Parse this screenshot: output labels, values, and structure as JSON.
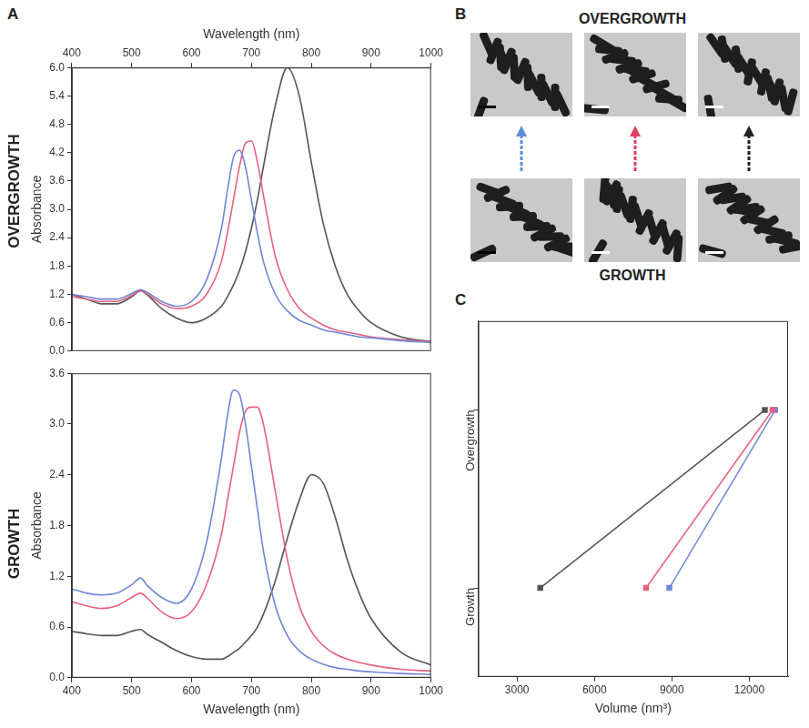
{
  "chart_data": [
    {
      "panel": "A",
      "type": "line",
      "title": "OVERGROWTH",
      "x_label": "Wavelength (nm)",
      "y_label": "Absorbance",
      "x": [
        400,
        425,
        450,
        475,
        500,
        515,
        525,
        550,
        575,
        600,
        625,
        650,
        660,
        670,
        680,
        690,
        700,
        710,
        720,
        740,
        760,
        780,
        800,
        820,
        840,
        860,
        880,
        900,
        950,
        1000
      ],
      "series": [
        {
          "color": "#6f86d9",
          "values": [
            1.2,
            1.15,
            1.1,
            1.1,
            1.22,
            1.3,
            1.25,
            1.05,
            0.95,
            1.05,
            1.5,
            2.6,
            3.4,
            4.1,
            4.25,
            3.9,
            3.2,
            2.5,
            1.9,
            1.2,
            0.85,
            0.65,
            0.55,
            0.45,
            0.4,
            0.35,
            0.3,
            0.28,
            0.22,
            0.18
          ]
        },
        {
          "color": "#e8607f",
          "values": [
            1.15,
            1.1,
            1.05,
            1.05,
            1.18,
            1.28,
            1.22,
            1.0,
            0.9,
            0.95,
            1.2,
            1.9,
            2.5,
            3.2,
            3.9,
            4.4,
            4.45,
            4.0,
            3.3,
            2.0,
            1.3,
            0.9,
            0.7,
            0.55,
            0.45,
            0.4,
            0.35,
            0.3,
            0.24,
            0.2
          ]
        },
        {
          "color": "#555555",
          "values": [
            1.2,
            1.1,
            1.0,
            1.0,
            1.15,
            1.28,
            1.2,
            0.9,
            0.7,
            0.6,
            0.7,
            0.95,
            1.15,
            1.4,
            1.7,
            2.1,
            2.6,
            3.2,
            3.9,
            5.2,
            6.0,
            5.4,
            4.0,
            2.7,
            1.8,
            1.2,
            0.85,
            0.6,
            0.3,
            0.2
          ]
        }
      ],
      "xlim": [
        400,
        1000
      ],
      "xticks": [
        400,
        500,
        600,
        700,
        800,
        900,
        1000
      ],
      "ylim": [
        0,
        6
      ],
      "yticks": [
        {
          "value": 0,
          "label": "0.0"
        },
        0.6,
        1.2,
        1.8,
        2.4,
        {
          "value": 3,
          "label": "3.0"
        },
        3.6,
        4.2,
        4.8,
        5.4,
        {
          "value": 6,
          "label": "6.0"
        }
      ],
      "grid": false
    },
    {
      "type": "line",
      "title": "GROWTH",
      "x_label": "Wavelength (nm)",
      "y_label": "Absorbance",
      "x": [
        400,
        425,
        450,
        475,
        500,
        515,
        525,
        550,
        575,
        600,
        625,
        650,
        660,
        670,
        680,
        690,
        700,
        710,
        720,
        740,
        760,
        780,
        800,
        820,
        840,
        860,
        880,
        900,
        950,
        1000
      ],
      "series": [
        {
          "color": "#6f86d9",
          "values": [
            1.05,
            1.0,
            0.98,
            1.0,
            1.1,
            1.18,
            1.1,
            0.95,
            0.88,
            1.05,
            1.6,
            2.6,
            3.1,
            3.4,
            3.35,
            3.0,
            2.5,
            2.0,
            1.5,
            0.85,
            0.5,
            0.32,
            0.22,
            0.16,
            0.12,
            0.1,
            0.08,
            0.07,
            0.05,
            0.04
          ]
        },
        {
          "color": "#e8607f",
          "values": [
            0.9,
            0.85,
            0.82,
            0.85,
            0.95,
            1.0,
            0.95,
            0.78,
            0.7,
            0.78,
            1.1,
            1.7,
            2.1,
            2.5,
            2.9,
            3.15,
            3.2,
            3.2,
            3.0,
            2.2,
            1.4,
            0.85,
            0.55,
            0.38,
            0.28,
            0.22,
            0.18,
            0.15,
            0.1,
            0.08
          ]
        },
        {
          "color": "#555555",
          "values": [
            0.55,
            0.52,
            0.5,
            0.5,
            0.55,
            0.57,
            0.52,
            0.42,
            0.32,
            0.25,
            0.22,
            0.22,
            0.25,
            0.3,
            0.35,
            0.42,
            0.5,
            0.6,
            0.75,
            1.15,
            1.65,
            2.1,
            2.4,
            2.3,
            1.9,
            1.4,
            1.0,
            0.7,
            0.3,
            0.15
          ]
        }
      ],
      "xlim": [
        400,
        1000
      ],
      "xticks": [
        400,
        500,
        600,
        700,
        800,
        900,
        1000
      ],
      "ylim": [
        0,
        3.6
      ],
      "yticks": [
        {
          "value": 0,
          "label": "0.0"
        },
        0.6,
        1.2,
        1.8,
        2.4,
        {
          "value": 3,
          "label": "3.0"
        },
        3.6
      ],
      "grid": false
    },
    {
      "panel": "C",
      "type": "line",
      "orientation": "horizontal",
      "marker": "square",
      "categories": [
        "Growth",
        "Overgrowth"
      ],
      "x_label": "Volume (nm³)",
      "series": [
        {
          "color": "#555555",
          "values": [
            3900,
            12600
          ]
        },
        {
          "color": "#e8607f",
          "values": [
            8000,
            12900
          ]
        },
        {
          "color": "#6f86d9",
          "values": [
            8900,
            13000
          ]
        }
      ],
      "xlim": [
        1500,
        13500
      ],
      "xticks": [
        3000,
        6000,
        9000,
        12000
      ],
      "grid": false
    }
  ],
  "panel_b": {
    "panel": "B",
    "top_title": "OVERGROWTH",
    "bottom_title": "GROWTH",
    "arrow_colors": [
      "#5b8fd6",
      "#e0405f",
      "#222222"
    ]
  }
}
